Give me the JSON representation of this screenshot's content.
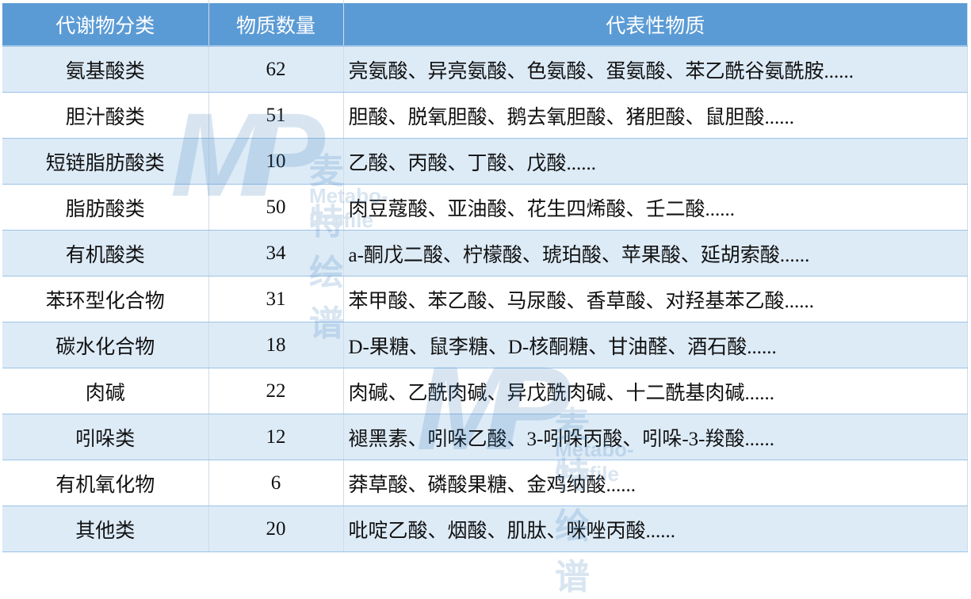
{
  "table": {
    "headers": [
      "代谢物分类",
      "物质数量",
      "代表性物质"
    ],
    "rows": [
      [
        "氨基酸类",
        "62",
        "亮氨酸、异亮氨酸、色氨酸、蛋氨酸、苯乙酰谷氨酰胺......"
      ],
      [
        "胆汁酸类",
        "51",
        "胆酸、脱氧胆酸、鹅去氧胆酸、猪胆酸、鼠胆酸......"
      ],
      [
        "短链脂肪酸类",
        "10",
        "乙酸、丙酸、丁酸、戊酸......"
      ],
      [
        "脂肪酸类",
        "50",
        "肉豆蔻酸、亚油酸、花生四烯酸、壬二酸......"
      ],
      [
        "有机酸类",
        "34",
        "a-酮戊二酸、柠檬酸、琥珀酸、苹果酸、延胡索酸......"
      ],
      [
        "苯环型化合物",
        "31",
        "苯甲酸、苯乙酸、马尿酸、香草酸、对羟基苯乙酸......"
      ],
      [
        "碳水化合物",
        "18",
        "D-果糖、鼠李糖、D-核酮糖、甘油醛、酒石酸......"
      ],
      [
        "肉碱",
        "22",
        "肉碱、乙酰肉碱、异戊酰肉碱、十二酰基肉碱......"
      ],
      [
        "吲哚类",
        "12",
        "褪黑素、吲哚乙酸、3-吲哚丙酸、吲哚-3-羧酸......"
      ],
      [
        "有机氧化物",
        "6",
        "莽草酸、磷酸果糖、金鸡纳酸......"
      ],
      [
        "其他类",
        "20",
        "吡啶乙酸、烟酸、肌肽、咪唑丙酸......"
      ]
    ]
  },
  "watermark": {
    "logo": "MP",
    "cn": "麦特绘谱",
    "en": "Metabo-Profile"
  },
  "colors": {
    "header_bg": "#5b9bd5",
    "band": "#ddebf7",
    "border": "#9dc3e6"
  }
}
